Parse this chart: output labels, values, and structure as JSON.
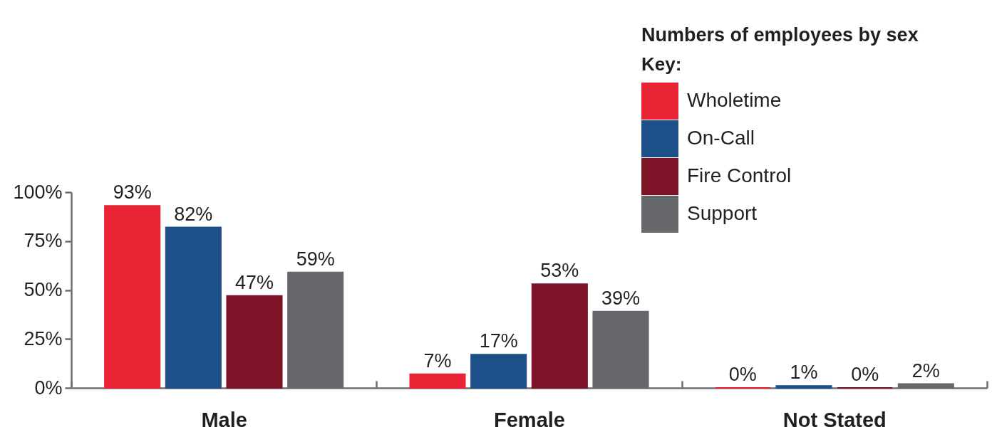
{
  "chart_data": {
    "type": "bar",
    "title": "Numbers of employees by sex",
    "legend_title": "Key:",
    "legend": "top right",
    "categories": [
      "Male",
      "Female",
      "Not Stated"
    ],
    "series": [
      {
        "name": "Wholetime",
        "color": "#e92535",
        "values": [
          93,
          7,
          0
        ],
        "value_labels": [
          "93%",
          "7%",
          "0%"
        ]
      },
      {
        "name": "On-Call",
        "color": "#1d4f88",
        "values": [
          82,
          17,
          1
        ],
        "value_labels": [
          "82%",
          "17%",
          "1%"
        ]
      },
      {
        "name": "Fire Control",
        "color": "#7d1327",
        "values": [
          47,
          53,
          0
        ],
        "value_labels": [
          "47%",
          "53%",
          "0%"
        ]
      },
      {
        "name": "Support",
        "color": "#66686b",
        "values": [
          59,
          39,
          2
        ],
        "value_labels": [
          "59%",
          "39%",
          "2%"
        ]
      }
    ],
    "ylim": [
      0,
      100
    ],
    "yticks": [
      {
        "value": 0,
        "label": "0%"
      },
      {
        "value": 25,
        "label": "25%"
      },
      {
        "value": 50,
        "label": "50%"
      },
      {
        "value": 75,
        "label": "75%"
      },
      {
        "value": 100,
        "label": "100%"
      }
    ]
  }
}
